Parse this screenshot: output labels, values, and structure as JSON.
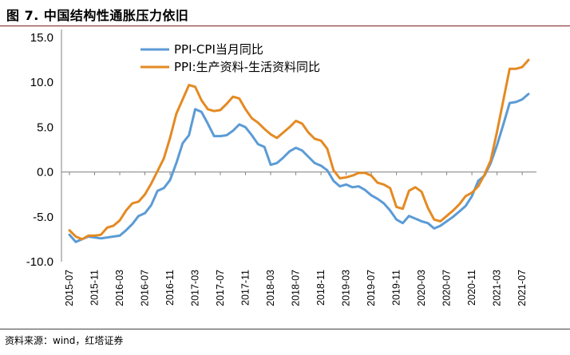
{
  "header": {
    "title": "图 7. 中国结构性通胀压力依旧"
  },
  "footer": {
    "source": "资料来源：wind，红塔证券"
  },
  "chart_data": {
    "type": "line",
    "title": "图 7. 中国结构性通胀压力依旧",
    "xlabel": "",
    "ylabel": "",
    "ylim": [
      -10,
      15
    ],
    "yticks": [
      "15.0",
      "10.0",
      "5.0",
      "0.0",
      "-5.0",
      "-10.0"
    ],
    "xticks": [
      "2015-07",
      "2015-11",
      "2016-03",
      "2016-07",
      "2016-11",
      "2017-03",
      "2017-07",
      "2017-11",
      "2018-03",
      "2018-07",
      "2018-11",
      "2019-03",
      "2019-07",
      "2019-11",
      "2020-03",
      "2020-07",
      "2020-11",
      "2021-03",
      "2021-07"
    ],
    "x": [
      "2015-07",
      "2015-08",
      "2015-09",
      "2015-10",
      "2015-11",
      "2015-12",
      "2016-01",
      "2016-02",
      "2016-03",
      "2016-04",
      "2016-05",
      "2016-06",
      "2016-07",
      "2016-08",
      "2016-09",
      "2016-10",
      "2016-11",
      "2016-12",
      "2017-01",
      "2017-02",
      "2017-03",
      "2017-04",
      "2017-05",
      "2017-06",
      "2017-07",
      "2017-08",
      "2017-09",
      "2017-10",
      "2017-11",
      "2017-12",
      "2018-01",
      "2018-02",
      "2018-03",
      "2018-04",
      "2018-05",
      "2018-06",
      "2018-07",
      "2018-08",
      "2018-09",
      "2018-10",
      "2018-11",
      "2018-12",
      "2019-01",
      "2019-02",
      "2019-03",
      "2019-04",
      "2019-05",
      "2019-06",
      "2019-07",
      "2019-08",
      "2019-09",
      "2019-10",
      "2019-11",
      "2019-12",
      "2020-01",
      "2020-02",
      "2020-03",
      "2020-04",
      "2020-05",
      "2020-06",
      "2020-07",
      "2020-08",
      "2020-09",
      "2020-10",
      "2020-11",
      "2020-12",
      "2021-01",
      "2021-02",
      "2021-03",
      "2021-04",
      "2021-05",
      "2021-06",
      "2021-07",
      "2021-08"
    ],
    "series": [
      {
        "name": "PPI-CPI当月同比",
        "color": "#5b9bd5",
        "values": [
          -7.0,
          -7.8,
          -7.5,
          -7.2,
          -7.3,
          -7.4,
          -7.3,
          -7.2,
          -7.1,
          -6.5,
          -5.8,
          -4.9,
          -4.6,
          -3.7,
          -2.1,
          -1.8,
          -0.9,
          1.0,
          3.2,
          4.1,
          7.0,
          6.7,
          5.4,
          4.0,
          4.0,
          4.1,
          4.6,
          5.3,
          5.0,
          4.1,
          3.1,
          2.8,
          0.8,
          1.0,
          1.6,
          2.3,
          2.7,
          2.4,
          1.7,
          1.0,
          0.7,
          0.2,
          -1.0,
          -1.6,
          -1.4,
          -1.7,
          -1.6,
          -2.0,
          -2.6,
          -3.0,
          -3.5,
          -4.3,
          -5.3,
          -5.7,
          -4.9,
          -5.2,
          -5.5,
          -5.7,
          -6.3,
          -6.0,
          -5.5,
          -5.0,
          -4.4,
          -3.8,
          -2.7,
          -1.0,
          -0.4,
          1.0,
          3.0,
          5.3,
          7.7,
          7.8,
          8.1,
          8.7
        ]
      },
      {
        "name": "PPI:生产资料-生活资料同比",
        "color": "#e48a23",
        "values": [
          -6.5,
          -7.2,
          -7.5,
          -7.1,
          -7.1,
          -7.0,
          -6.2,
          -6.0,
          -5.4,
          -4.3,
          -3.5,
          -3.3,
          -2.5,
          -1.3,
          0.1,
          1.5,
          3.8,
          6.5,
          8.1,
          9.7,
          9.5,
          8.0,
          7.0,
          6.8,
          6.9,
          7.6,
          8.4,
          8.2,
          7.0,
          6.0,
          5.5,
          4.8,
          4.2,
          3.8,
          4.4,
          5.0,
          5.7,
          5.4,
          4.4,
          3.7,
          3.5,
          2.6,
          0.2,
          -0.7,
          -0.6,
          -0.4,
          -0.1,
          -0.1,
          -0.4,
          -1.2,
          -1.4,
          -1.8,
          -3.9,
          -4.1,
          -2.1,
          -1.7,
          -2.2,
          -4.0,
          -5.3,
          -5.5,
          -4.9,
          -4.3,
          -3.6,
          -2.7,
          -2.3,
          -1.6,
          -0.3,
          1.3,
          4.5,
          8.0,
          11.5,
          11.5,
          11.7,
          12.5
        ]
      }
    ],
    "legend": {
      "position": "top-left",
      "entries": [
        "PPI-CPI当月同比",
        "PPI:生产资料-生活资料同比"
      ]
    },
    "grid": false
  }
}
